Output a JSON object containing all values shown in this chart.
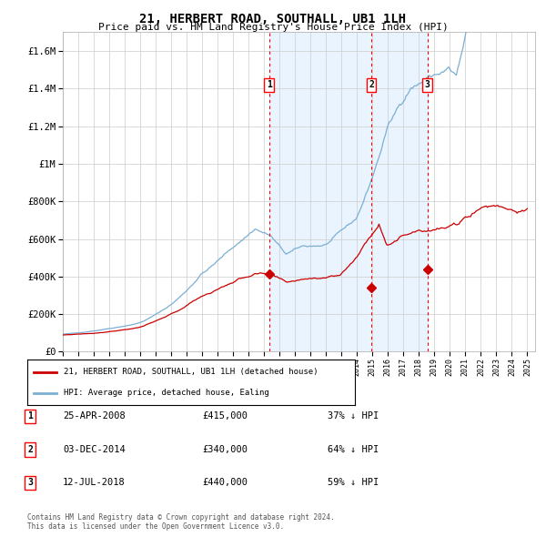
{
  "title": "21, HERBERT ROAD, SOUTHALL, UB1 1LH",
  "subtitle": "Price paid vs. HM Land Registry's House Price Index (HPI)",
  "legend_property": "21, HERBERT ROAD, SOUTHALL, UB1 1LH (detached house)",
  "legend_hpi": "HPI: Average price, detached house, Ealing",
  "footer": "Contains HM Land Registry data © Crown copyright and database right 2024.\nThis data is licensed under the Open Government Licence v3.0.",
  "transactions": [
    {
      "label": "1",
      "date": "25-APR-2008",
      "price": 415000,
      "pct": "37%",
      "dir": "↓"
    },
    {
      "label": "2",
      "date": "03-DEC-2014",
      "price": 340000,
      "pct": "64%",
      "dir": "↓"
    },
    {
      "label": "3",
      "date": "12-JUL-2018",
      "price": 440000,
      "pct": "59%",
      "dir": "↓"
    }
  ],
  "vline_dates": [
    2008.32,
    2014.92,
    2018.54
  ],
  "hpi_color": "#7bafd4",
  "property_color": "#cc0000",
  "background_color": "#ffffff",
  "chart_bg_shaded": "#ddeeff",
  "ylim": [
    0,
    1700000
  ],
  "xlim_start": 1995.0,
  "xlim_end": 2025.5
}
